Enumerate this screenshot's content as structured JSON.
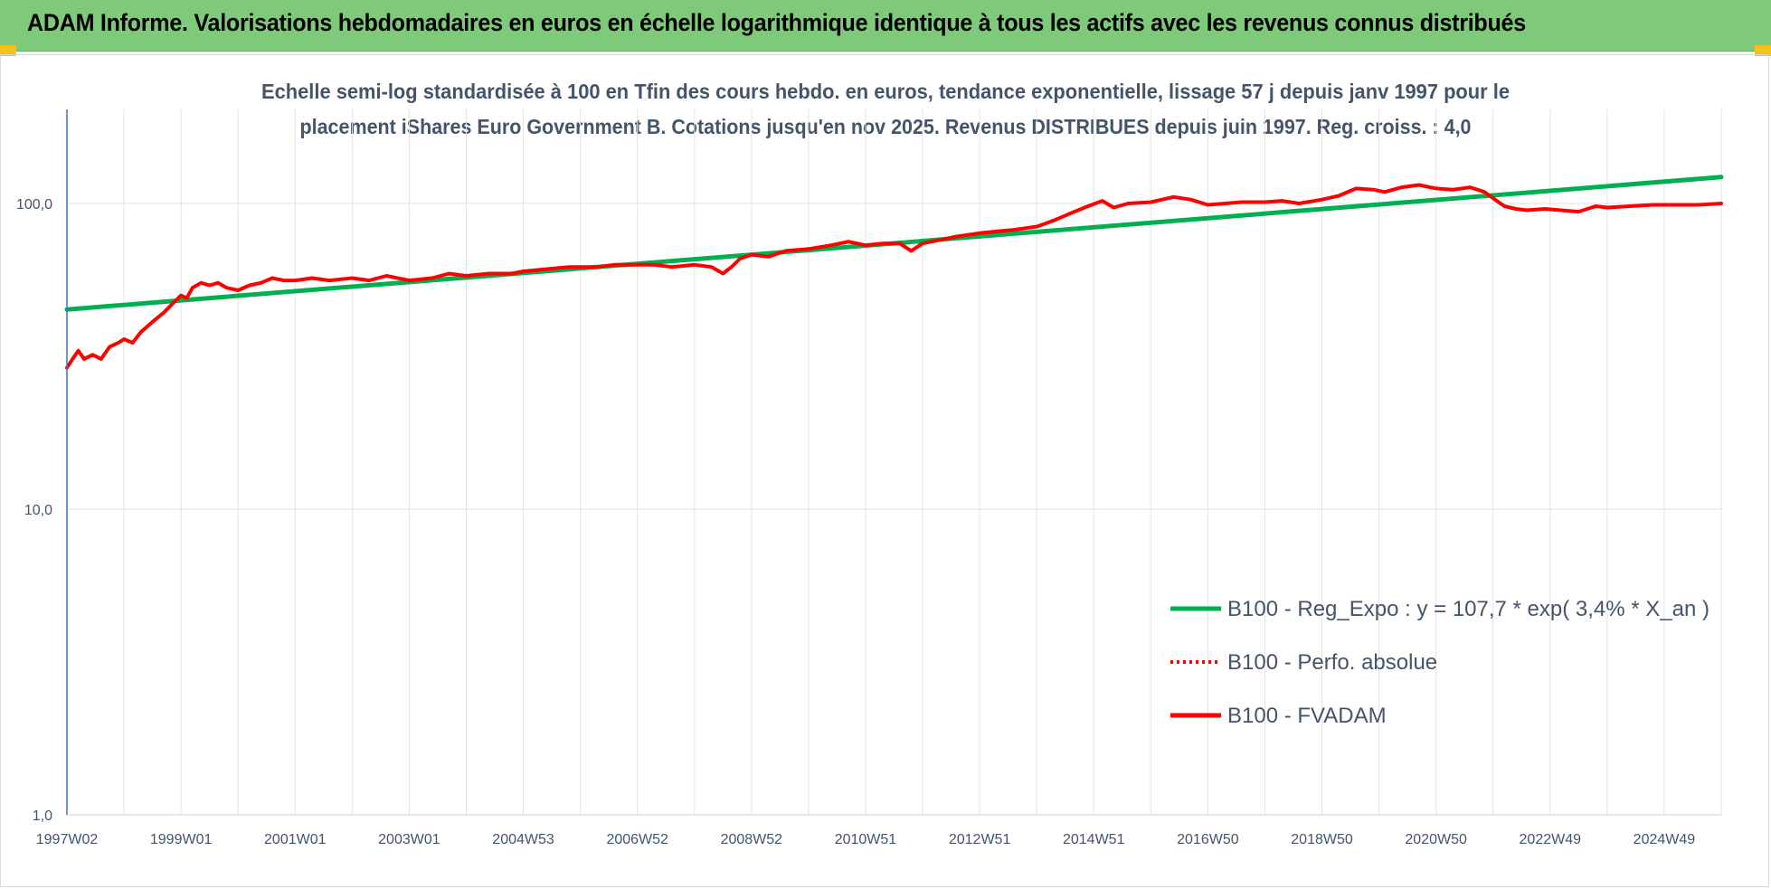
{
  "header": {
    "title": "ADAM Informe. Valorisations hebdomadaires en euros en échelle logarithmique identique à tous les actifs avec les revenus connus distribués",
    "background": "#7fc97a"
  },
  "chart_data": {
    "type": "line",
    "title": "",
    "subtitle_lines": [
      "Echelle semi-log standardisée à 100 en Tfin des cours hebdo. en euros, tendance exponentielle, lissage 57 j depuis janv 1997 pour le",
      "placement iShares Euro Government B. Cotations jusqu'en nov 2025. Revenus DISTRIBUES depuis juin 1997. Reg. croiss. : 4,0"
    ],
    "xlabel": "",
    "ylabel": "",
    "y_scale": "log",
    "ylim": [
      1,
      200
    ],
    "y_ticks": [
      1,
      10,
      100
    ],
    "y_tick_labels": [
      "1,0",
      "10,0",
      "100,0"
    ],
    "x_range": [
      1997.0,
      2026.0
    ],
    "x_tick_labels": [
      "1997W02",
      "1999W01",
      "2001W01",
      "2003W01",
      "2004W53",
      "2006W52",
      "2008W52",
      "2010W51",
      "2012W51",
      "2014W51",
      "2016W50",
      "2018W50",
      "2020W50",
      "2022W49",
      "2024W49"
    ],
    "x_tick_positions": [
      1997.0,
      1999.0,
      2001.0,
      2003.0,
      2005.0,
      2007.0,
      2009.0,
      2011.0,
      2013.0,
      2015.0,
      2017.0,
      2019.0,
      2021.0,
      2023.0,
      2025.0
    ],
    "grid": {
      "vertical": true,
      "horizontal": true
    },
    "legend_position": "bottom-right",
    "series": [
      {
        "name": "B100 - Reg_Expo : y = 107,7 * exp( 3,4% *  X_an )",
        "color": "#00b050",
        "style": "solid",
        "points": [
          [
            1997.0,
            45
          ],
          [
            2026.0,
            122
          ]
        ]
      },
      {
        "name": "B100 - Perfo. absolue",
        "color": "#ff0000",
        "style": "dotted",
        "points": []
      },
      {
        "name": "B100 - FVADAM",
        "color": "#ff0000",
        "style": "solid",
        "points": [
          [
            1997.0,
            29
          ],
          [
            1997.1,
            31
          ],
          [
            1997.2,
            33
          ],
          [
            1997.3,
            31
          ],
          [
            1997.45,
            32
          ],
          [
            1997.6,
            31
          ],
          [
            1997.75,
            34
          ],
          [
            1997.9,
            35
          ],
          [
            1998.0,
            36
          ],
          [
            1998.15,
            35
          ],
          [
            1998.3,
            38
          ],
          [
            1998.5,
            41
          ],
          [
            1998.7,
            44
          ],
          [
            1998.85,
            47
          ],
          [
            1999.0,
            50
          ],
          [
            1999.1,
            49
          ],
          [
            1999.2,
            53
          ],
          [
            1999.35,
            55
          ],
          [
            1999.5,
            54
          ],
          [
            1999.65,
            55
          ],
          [
            1999.8,
            53
          ],
          [
            2000.0,
            52
          ],
          [
            2000.2,
            54
          ],
          [
            2000.4,
            55
          ],
          [
            2000.6,
            57
          ],
          [
            2000.8,
            56
          ],
          [
            2001.0,
            56
          ],
          [
            2001.3,
            57
          ],
          [
            2001.6,
            56
          ],
          [
            2002.0,
            57
          ],
          [
            2002.3,
            56
          ],
          [
            2002.6,
            58
          ],
          [
            2003.0,
            56
          ],
          [
            2003.4,
            57
          ],
          [
            2003.7,
            59
          ],
          [
            2004.0,
            58
          ],
          [
            2004.4,
            59
          ],
          [
            2004.8,
            59
          ],
          [
            2005.0,
            60
          ],
          [
            2005.4,
            61
          ],
          [
            2005.8,
            62
          ],
          [
            2006.0,
            62
          ],
          [
            2006.3,
            62
          ],
          [
            2006.6,
            63
          ],
          [
            2007.0,
            63
          ],
          [
            2007.3,
            63
          ],
          [
            2007.6,
            62
          ],
          [
            2008.0,
            63
          ],
          [
            2008.3,
            62
          ],
          [
            2008.5,
            59
          ],
          [
            2008.65,
            62
          ],
          [
            2008.8,
            66
          ],
          [
            2009.0,
            68
          ],
          [
            2009.3,
            67
          ],
          [
            2009.6,
            70
          ],
          [
            2010.0,
            71
          ],
          [
            2010.4,
            73
          ],
          [
            2010.7,
            75
          ],
          [
            2011.0,
            73
          ],
          [
            2011.3,
            74
          ],
          [
            2011.6,
            74
          ],
          [
            2011.8,
            70
          ],
          [
            2012.0,
            74
          ],
          [
            2012.3,
            76
          ],
          [
            2012.6,
            78
          ],
          [
            2013.0,
            80
          ],
          [
            2013.3,
            81
          ],
          [
            2013.6,
            82
          ],
          [
            2014.0,
            84
          ],
          [
            2014.3,
            88
          ],
          [
            2014.6,
            93
          ],
          [
            2014.9,
            98
          ],
          [
            2015.15,
            102
          ],
          [
            2015.35,
            97
          ],
          [
            2015.6,
            100
          ],
          [
            2016.0,
            101
          ],
          [
            2016.4,
            105
          ],
          [
            2016.7,
            103
          ],
          [
            2017.0,
            99
          ],
          [
            2017.3,
            100
          ],
          [
            2017.6,
            101
          ],
          [
            2018.0,
            101
          ],
          [
            2018.3,
            102
          ],
          [
            2018.6,
            100
          ],
          [
            2019.0,
            103
          ],
          [
            2019.3,
            106
          ],
          [
            2019.6,
            112
          ],
          [
            2019.9,
            111
          ],
          [
            2020.1,
            109
          ],
          [
            2020.4,
            113
          ],
          [
            2020.7,
            115
          ],
          [
            2021.0,
            112
          ],
          [
            2021.3,
            111
          ],
          [
            2021.6,
            113
          ],
          [
            2021.85,
            109
          ],
          [
            2022.0,
            104
          ],
          [
            2022.2,
            98
          ],
          [
            2022.4,
            96
          ],
          [
            2022.6,
            95
          ],
          [
            2022.9,
            96
          ],
          [
            2023.2,
            95
          ],
          [
            2023.5,
            94
          ],
          [
            2023.8,
            98
          ],
          [
            2024.0,
            97
          ],
          [
            2024.4,
            98
          ],
          [
            2024.8,
            99
          ],
          [
            2025.2,
            99
          ],
          [
            2025.6,
            99
          ],
          [
            2026.0,
            100
          ]
        ]
      }
    ]
  }
}
